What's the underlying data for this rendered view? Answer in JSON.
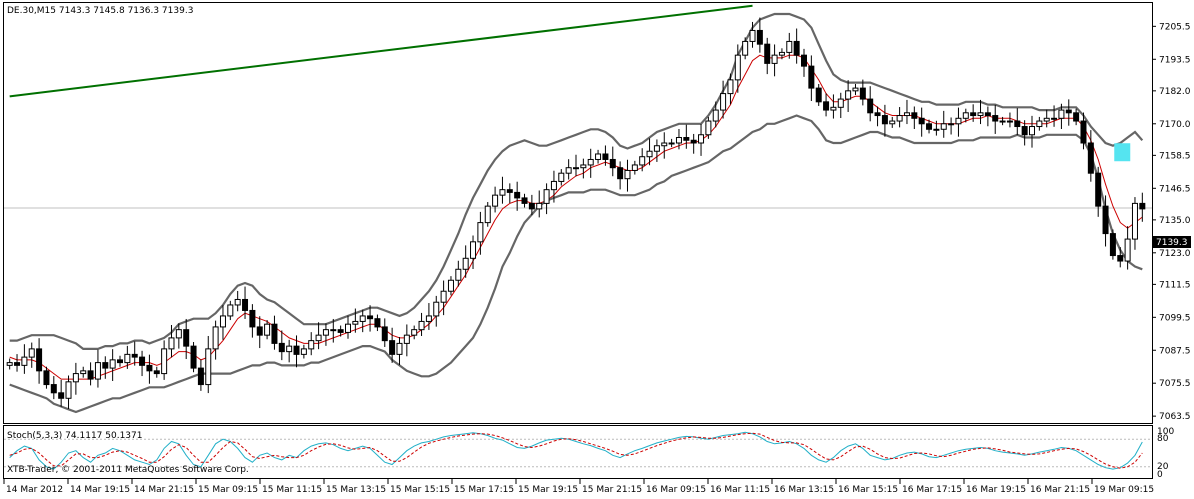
{
  "header": {
    "title": "DE.30,M15  7143.3 7145.8 7136.3 7139.3"
  },
  "stoch": {
    "label": "Stoch(5,3,3) 74.1117 50.1371",
    "levels": [
      "100",
      "80",
      "20",
      "0"
    ],
    "copyright": "XTB-Trader, © 2001-2011 MetaQuotes Software Corp."
  },
  "price_marker": "7139.3",
  "colors": {
    "up_candle": "#ffffff",
    "down_candle": "#000000",
    "bollinger": "#666666",
    "ma": "#cc0000",
    "trend": "#007000",
    "stoch_main": "#22b0c8",
    "stoch_signal": "#cc0000",
    "marker_box": "#55e4f0"
  },
  "chart_data": [
    {
      "type": "candlestick",
      "title": "DE.30,M15  7143.3 7145.8 7136.3 7139.3",
      "symbol": "DE.30",
      "timeframe": "M15",
      "last": {
        "open": 7143.3,
        "high": 7145.8,
        "low": 7136.3,
        "close": 7139.3
      },
      "y_ticks": [
        7205.5,
        7193.5,
        7182.0,
        7170.0,
        7158.5,
        7146.5,
        7135.0,
        7123.0,
        7111.5,
        7099.5,
        7087.5,
        7075.5,
        7063.5
      ],
      "ylim": [
        7061,
        7214
      ],
      "x_tick_labels": [
        "14 Mar 2012",
        "14 Mar 19:15",
        "14 Mar 21:15",
        "15 Mar 09:15",
        "15 Mar 11:15",
        "15 Mar 13:15",
        "15 Mar 15:15",
        "15 Mar 17:15",
        "15 Mar 19:15",
        "15 Mar 21:15",
        "16 Mar 09:15",
        "16 Mar 11:15",
        "16 Mar 13:15",
        "16 Mar 15:15",
        "16 Mar 17:15",
        "16 Mar 19:15",
        "16 Mar 21:15",
        "19 Mar 09:15"
      ],
      "closes": [
        7083,
        7082,
        7085,
        7088,
        7080,
        7075,
        7072,
        7070,
        7076,
        7079,
        7080,
        7077,
        7083,
        7081,
        7084,
        7083,
        7086,
        7085,
        7082,
        7080,
        7079,
        7088,
        7092,
        7095,
        7089,
        7081,
        7075,
        7088,
        7096,
        7100,
        7104,
        7106,
        7102,
        7096,
        7093,
        7097,
        7090,
        7087,
        7089,
        7086,
        7088,
        7091,
        7093,
        7095,
        7095,
        7094,
        7097,
        7098,
        7100,
        7099,
        7096,
        7091,
        7086,
        7090,
        7093,
        7095,
        7098,
        7100,
        7105,
        7109,
        7113,
        7117,
        7121,
        7127,
        7134,
        7140,
        7144,
        7146,
        7145,
        7143,
        7141,
        7139,
        7141,
        7146,
        7149,
        7152,
        7154,
        7154,
        7155,
        7157,
        7159,
        7157,
        7154,
        7150,
        7153,
        7155,
        7158,
        7160,
        7162,
        7163,
        7163,
        7165,
        7164,
        7163,
        7166,
        7171,
        7175,
        7181,
        7186,
        7195,
        7200,
        7204,
        7199,
        7192,
        7195,
        7196,
        7200,
        7195,
        7191,
        7183,
        7178,
        7175,
        7176,
        7179,
        7182,
        7183,
        7179,
        7174,
        7173,
        7170,
        7171,
        7173,
        7174,
        7172,
        7170,
        7168,
        7168,
        7170,
        7170,
        7172,
        7174,
        7173,
        7174,
        7173,
        7171,
        7171,
        7171,
        7169,
        7166,
        7169,
        7171,
        7172,
        7172,
        7175,
        7174,
        7171,
        7163,
        7152,
        7140,
        7130,
        7122,
        7120,
        7128,
        7141,
        7139
      ],
      "series": [
        {
          "name": "MA (red)",
          "values": [
            7085,
            7084,
            7084,
            7084,
            7083,
            7081,
            7079,
            7077,
            7077,
            7077,
            7077,
            7077,
            7078,
            7079,
            7080,
            7081,
            7082,
            7083,
            7083,
            7083,
            7082,
            7083,
            7085,
            7087,
            7087,
            7086,
            7084,
            7085,
            7088,
            7091,
            7095,
            7099,
            7101,
            7100,
            7099,
            7098,
            7096,
            7094,
            7092,
            7091,
            7090,
            7090,
            7090,
            7091,
            7092,
            7093,
            7094,
            7095,
            7096,
            7097,
            7097,
            7095,
            7093,
            7092,
            7092,
            7093,
            7095,
            7097,
            7100,
            7103,
            7107,
            7111,
            7115,
            7120,
            7125,
            7130,
            7135,
            7139,
            7141,
            7142,
            7142,
            7141,
            7141,
            7142,
            7144,
            7147,
            7149,
            7151,
            7152,
            7154,
            7155,
            7156,
            7155,
            7154,
            7153,
            7153,
            7154,
            7156,
            7158,
            7160,
            7161,
            7162,
            7163,
            7163,
            7164,
            7166,
            7169,
            7173,
            7177,
            7183,
            7188,
            7193,
            7195,
            7194,
            7194,
            7194,
            7195,
            7195,
            7194,
            7190,
            7186,
            7181,
            7178,
            7178,
            7179,
            7180,
            7180,
            7178,
            7176,
            7174,
            7173,
            7173,
            7173,
            7173,
            7172,
            7171,
            7170,
            7170,
            7170,
            7170,
            7171,
            7172,
            7172,
            7173,
            7172,
            7172,
            7172,
            7171,
            7170,
            7170,
            7170,
            7170,
            7171,
            7172,
            7172,
            7172,
            7169,
            7164,
            7157,
            7148,
            7140,
            7134,
            7132,
            7134,
            7136
          ]
        },
        {
          "name": "Bollinger upper",
          "values": [
            7091,
            7091,
            7092,
            7093,
            7093,
            7093,
            7093,
            7092,
            7091,
            7090,
            7088,
            7088,
            7088,
            7089,
            7089,
            7090,
            7090,
            7091,
            7091,
            7090,
            7091,
            7092,
            7094,
            7097,
            7098,
            7099,
            7099,
            7099,
            7101,
            7104,
            7108,
            7111,
            7112,
            7111,
            7108,
            7106,
            7105,
            7103,
            7101,
            7099,
            7097,
            7097,
            7097,
            7097,
            7098,
            7099,
            7100,
            7101,
            7102,
            7103,
            7103,
            7102,
            7101,
            7100,
            7101,
            7103,
            7106,
            7109,
            7113,
            7118,
            7124,
            7130,
            7137,
            7143,
            7148,
            7153,
            7157,
            7160,
            7162,
            7163,
            7164,
            7163,
            7162,
            7162,
            7163,
            7164,
            7165,
            7166,
            7167,
            7168,
            7168,
            7167,
            7165,
            7162,
            7161,
            7162,
            7163,
            7165,
            7167,
            7168,
            7169,
            7170,
            7170,
            7170,
            7170,
            7173,
            7177,
            7182,
            7187,
            7195,
            7200,
            7205,
            7208,
            7209,
            7210,
            7210,
            7210,
            7209,
            7208,
            7205,
            7199,
            7193,
            7188,
            7186,
            7185,
            7185,
            7185,
            7185,
            7184,
            7183,
            7182,
            7181,
            7180,
            7179,
            7178,
            7178,
            7177,
            7177,
            7177,
            7177,
            7178,
            7178,
            7178,
            7177,
            7177,
            7176,
            7176,
            7176,
            7176,
            7176,
            7175,
            7175,
            7175,
            7176,
            7176,
            7176,
            7173,
            7169,
            7166,
            7163,
            7162,
            7163,
            7165,
            7167,
            7164
          ]
        },
        {
          "name": "Bollinger lower",
          "values": [
            7075,
            7074,
            7073,
            7072,
            7071,
            7070,
            7068,
            7067,
            7066,
            7065,
            7066,
            7067,
            7068,
            7069,
            7070,
            7070,
            7071,
            7072,
            7073,
            7074,
            7074,
            7074,
            7075,
            7076,
            7077,
            7078,
            7079,
            7079,
            7079,
            7079,
            7079,
            7080,
            7081,
            7082,
            7082,
            7083,
            7083,
            7082,
            7082,
            7082,
            7082,
            7083,
            7083,
            7084,
            7085,
            7086,
            7087,
            7088,
            7089,
            7089,
            7088,
            7087,
            7084,
            7082,
            7080,
            7079,
            7078,
            7078,
            7079,
            7081,
            7083,
            7086,
            7089,
            7092,
            7097,
            7103,
            7110,
            7118,
            7123,
            7129,
            7134,
            7137,
            7140,
            7142,
            7143,
            7144,
            7145,
            7145,
            7145,
            7146,
            7146,
            7146,
            7145,
            7144,
            7144,
            7144,
            7145,
            7146,
            7148,
            7149,
            7151,
            7152,
            7153,
            7154,
            7155,
            7156,
            7158,
            7160,
            7161,
            7163,
            7165,
            7167,
            7168,
            7170,
            7170,
            7171,
            7172,
            7173,
            7172,
            7171,
            7168,
            7164,
            7163,
            7163,
            7164,
            7165,
            7166,
            7167,
            7167,
            7166,
            7165,
            7165,
            7164,
            7163,
            7163,
            7163,
            7163,
            7163,
            7163,
            7164,
            7164,
            7164,
            7165,
            7165,
            7165,
            7165,
            7165,
            7166,
            7165,
            7165,
            7165,
            7166,
            7166,
            7166,
            7166,
            7166,
            7164,
            7159,
            7150,
            7139,
            7130,
            7124,
            7120,
            7118,
            7117
          ]
        }
      ],
      "trend_line": {
        "from": [
          0,
          7180
        ],
        "to": [
          101,
          7213
        ]
      }
    },
    {
      "type": "line",
      "title": "Stoch(5,3,3) 74.1117 50.1371",
      "ylim": [
        0,
        100
      ],
      "levels": [
        100,
        80,
        20,
        0
      ],
      "series": [
        {
          "name": "main",
          "values": [
            40,
            55,
            65,
            60,
            35,
            20,
            15,
            30,
            50,
            55,
            40,
            30,
            45,
            50,
            60,
            55,
            45,
            35,
            30,
            25,
            35,
            60,
            75,
            70,
            45,
            25,
            20,
            45,
            70,
            80,
            75,
            60,
            40,
            30,
            45,
            50,
            40,
            35,
            45,
            40,
            55,
            65,
            70,
            72,
            68,
            60,
            55,
            60,
            65,
            60,
            45,
            30,
            25,
            40,
            55,
            65,
            72,
            75,
            80,
            85,
            88,
            90,
            92,
            94,
            92,
            88,
            82,
            78,
            70,
            62,
            60,
            65,
            72,
            78,
            80,
            82,
            80,
            75,
            70,
            66,
            60,
            55,
            45,
            40,
            48,
            55,
            60,
            66,
            72,
            76,
            80,
            84,
            86,
            85,
            82,
            80,
            84,
            88,
            90,
            92,
            95,
            92,
            85,
            75,
            70,
            72,
            75,
            70,
            60,
            45,
            35,
            30,
            40,
            55,
            65,
            70,
            60,
            45,
            40,
            35,
            38,
            45,
            50,
            52,
            48,
            42,
            40,
            45,
            50,
            55,
            58,
            60,
            62,
            60,
            55,
            52,
            50,
            48,
            45,
            48,
            52,
            55,
            58,
            62,
            60,
            55,
            45,
            35,
            25,
            18,
            15,
            18,
            28,
            45,
            74
          ]
        },
        {
          "name": "signal",
          "values": [
            45,
            50,
            58,
            60,
            50,
            35,
            22,
            22,
            35,
            48,
            48,
            40,
            40,
            45,
            52,
            55,
            52,
            45,
            38,
            30,
            30,
            42,
            58,
            68,
            62,
            45,
            30,
            30,
            45,
            62,
            75,
            72,
            58,
            42,
            38,
            42,
            45,
            42,
            40,
            40,
            45,
            55,
            63,
            69,
            70,
            67,
            61,
            58,
            60,
            62,
            55,
            43,
            32,
            32,
            40,
            52,
            63,
            71,
            76,
            80,
            84,
            87,
            89,
            91,
            92,
            91,
            88,
            83,
            77,
            70,
            64,
            62,
            65,
            70,
            76,
            80,
            81,
            79,
            75,
            70,
            65,
            60,
            54,
            47,
            45,
            48,
            54,
            60,
            66,
            71,
            76,
            80,
            83,
            85,
            84,
            82,
            82,
            84,
            87,
            90,
            92,
            93,
            91,
            84,
            77,
            73,
            72,
            72,
            68,
            58,
            47,
            37,
            35,
            42,
            53,
            63,
            65,
            58,
            48,
            40,
            38,
            39,
            44,
            49,
            50,
            48,
            44,
            42,
            45,
            50,
            54,
            58,
            60,
            61,
            59,
            56,
            52,
            50,
            48,
            47,
            48,
            51,
            55,
            58,
            60,
            59,
            53,
            45,
            35,
            26,
            20,
            17,
            20,
            30,
            50
          ]
        }
      ]
    }
  ]
}
